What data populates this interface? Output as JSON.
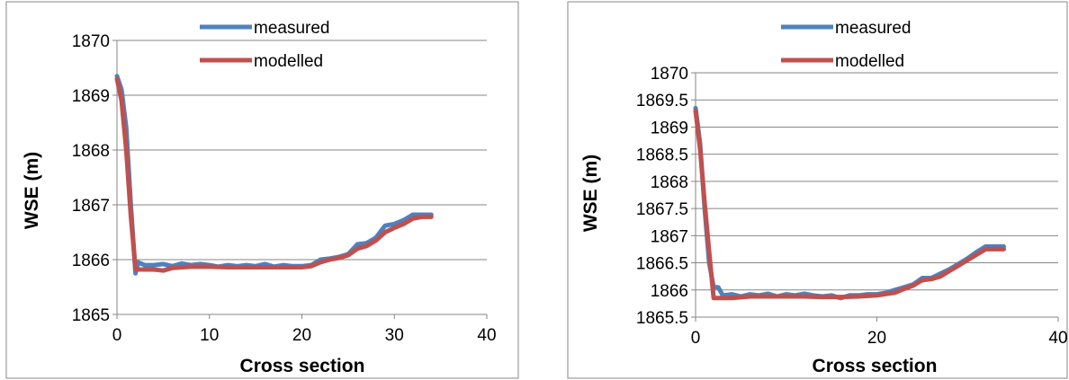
{
  "chart_data": [
    {
      "type": "line",
      "xlabel": "Cross section",
      "ylabel": "WSE (m)",
      "xlim": [
        0,
        40
      ],
      "ylim": [
        1865,
        1870
      ],
      "xticks": [
        "0",
        "10",
        "20",
        "30",
        "40"
      ],
      "yticks": [
        "1865",
        "1866",
        "1867",
        "1868",
        "1869",
        "1870"
      ],
      "grid": "horizontal",
      "legend": "top",
      "series": [
        {
          "name": "measured",
          "color": "#4f81bd",
          "x": [
            0,
            0.5,
            1,
            1.5,
            2,
            2.3,
            3,
            4,
            5,
            6,
            7,
            8,
            9,
            10,
            11,
            12,
            13,
            14,
            15,
            16,
            17,
            18,
            19,
            20,
            21,
            22,
            23,
            24,
            25,
            26,
            27,
            28,
            29,
            30,
            31,
            32,
            33,
            34
          ],
          "y": [
            1869.35,
            1869.1,
            1868.4,
            1867.0,
            1865.75,
            1865.95,
            1865.9,
            1865.9,
            1865.92,
            1865.88,
            1865.93,
            1865.9,
            1865.92,
            1865.9,
            1865.87,
            1865.9,
            1865.88,
            1865.9,
            1865.88,
            1865.92,
            1865.87,
            1865.9,
            1865.88,
            1865.88,
            1865.9,
            1866.0,
            1866.02,
            1866.05,
            1866.1,
            1866.28,
            1866.3,
            1866.4,
            1866.62,
            1866.65,
            1866.72,
            1866.82,
            1866.82,
            1866.82
          ]
        },
        {
          "name": "modelled",
          "color": "#c0504d",
          "x": [
            0,
            0.5,
            1,
            1.5,
            2,
            3,
            4,
            5,
            6,
            8,
            10,
            12,
            14,
            16,
            18,
            20,
            21,
            22,
            23,
            24,
            25,
            26,
            27,
            28,
            29,
            30,
            31,
            32,
            33,
            34
          ],
          "y": [
            1869.3,
            1868.9,
            1868.0,
            1866.8,
            1865.82,
            1865.82,
            1865.82,
            1865.8,
            1865.85,
            1865.87,
            1865.87,
            1865.86,
            1865.86,
            1865.86,
            1865.86,
            1865.86,
            1865.88,
            1865.95,
            1866.0,
            1866.03,
            1866.08,
            1866.2,
            1866.25,
            1866.35,
            1866.5,
            1866.58,
            1866.65,
            1866.75,
            1866.78,
            1866.78
          ]
        }
      ]
    },
    {
      "type": "line",
      "xlabel": "Cross section",
      "ylabel": "WSE (m)",
      "xlim": [
        0,
        40
      ],
      "ylim": [
        1865.5,
        1870
      ],
      "xticks": [
        "0",
        "20",
        "40"
      ],
      "yticks": [
        "1865.5",
        "1866",
        "1866.5",
        "1867",
        "1867.5",
        "1868",
        "1868.5",
        "1869",
        "1869.5",
        "1870"
      ],
      "grid": "horizontal",
      "legend": "top",
      "series": [
        {
          "name": "measured",
          "color": "#4f81bd",
          "x": [
            0,
            0.5,
            1,
            1.5,
            2,
            2.5,
            3,
            4,
            5,
            6,
            7,
            8,
            9,
            10,
            11,
            12,
            13,
            14,
            15,
            16,
            17,
            18,
            19,
            20,
            21,
            22,
            23,
            24,
            25,
            26,
            27,
            28,
            29,
            30,
            31,
            32,
            33,
            34
          ],
          "y": [
            1869.35,
            1868.7,
            1867.5,
            1866.5,
            1866.05,
            1866.05,
            1865.9,
            1865.92,
            1865.88,
            1865.92,
            1865.9,
            1865.93,
            1865.88,
            1865.92,
            1865.9,
            1865.93,
            1865.9,
            1865.88,
            1865.9,
            1865.85,
            1865.9,
            1865.9,
            1865.92,
            1865.92,
            1865.95,
            1866.0,
            1866.05,
            1866.1,
            1866.22,
            1866.22,
            1866.3,
            1866.38,
            1866.48,
            1866.58,
            1866.7,
            1866.8,
            1866.8,
            1866.8
          ]
        },
        {
          "name": "modelled",
          "color": "#c0504d",
          "x": [
            0,
            0.5,
            1,
            1.5,
            2,
            3,
            4,
            6,
            8,
            10,
            12,
            14,
            16,
            18,
            20,
            22,
            23,
            24,
            25,
            26,
            27,
            28,
            29,
            30,
            31,
            32,
            33,
            34
          ],
          "y": [
            1869.3,
            1868.6,
            1867.6,
            1866.7,
            1865.85,
            1865.85,
            1865.85,
            1865.88,
            1865.88,
            1865.88,
            1865.88,
            1865.87,
            1865.87,
            1865.88,
            1865.9,
            1865.95,
            1866.02,
            1866.08,
            1866.18,
            1866.2,
            1866.25,
            1866.35,
            1866.45,
            1866.55,
            1866.65,
            1866.75,
            1866.75,
            1866.75
          ]
        }
      ]
    }
  ]
}
